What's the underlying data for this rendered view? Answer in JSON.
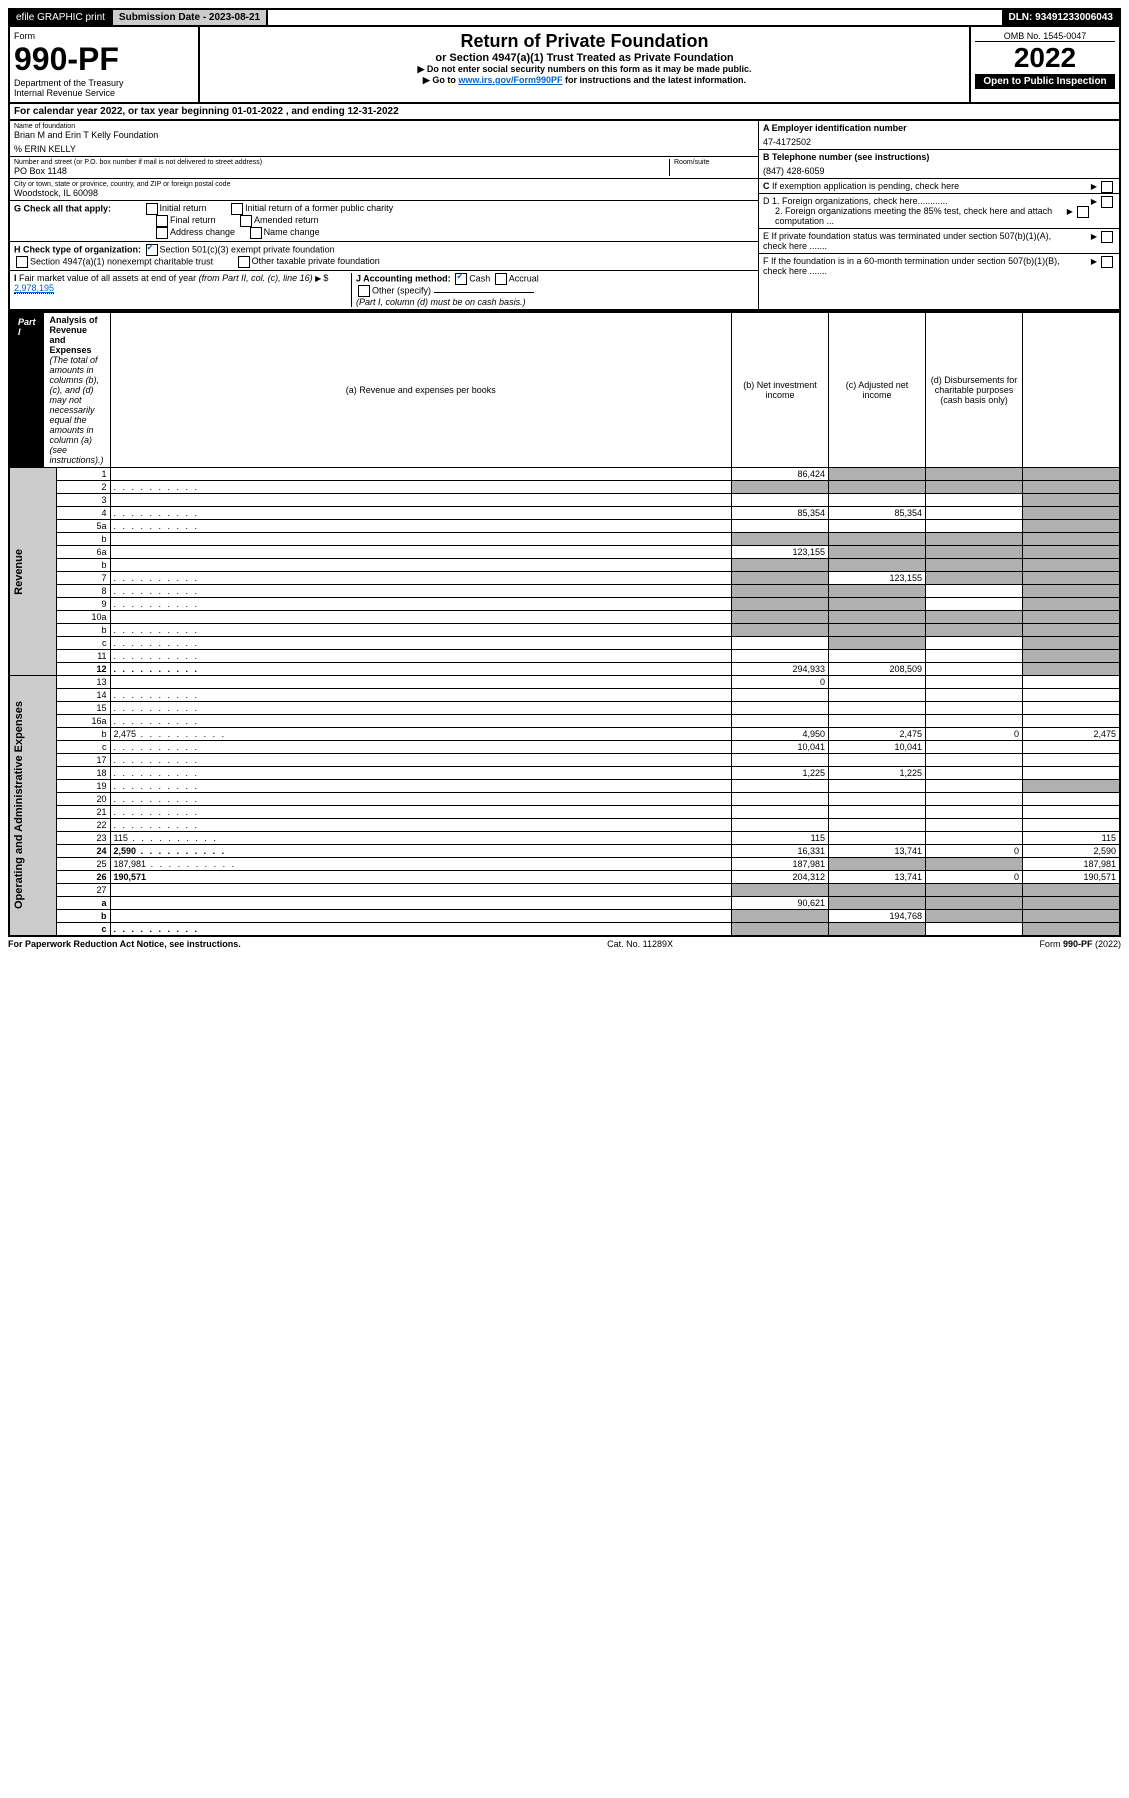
{
  "topbar": {
    "efile": "efile GRAPHIC print",
    "submission_label": "Submission Date - 2023-08-21",
    "dln": "DLN: 93491233006043"
  },
  "header": {
    "form_word": "Form",
    "form_number": "990-PF",
    "dept": "Department of the Treasury",
    "irs": "Internal Revenue Service",
    "title": "Return of Private Foundation",
    "subtitle": "or Section 4947(a)(1) Trust Treated as Private Foundation",
    "instr1": "▶ Do not enter social security numbers on this form as it may be made public.",
    "instr2_pre": "▶ Go to ",
    "instr2_link": "www.irs.gov/Form990PF",
    "instr2_post": " for instructions and the latest information.",
    "omb": "OMB No. 1545-0047",
    "year": "2022",
    "open_public": "Open to Public Inspection"
  },
  "calendar_line": {
    "prefix": "For calendar year 2022, or tax year beginning ",
    "begin": "01-01-2022",
    "mid": " , and ending ",
    "end": "12-31-2022"
  },
  "foundation": {
    "name_label": "Name of foundation",
    "name": "Brian M and Erin T Kelly Foundation",
    "care_of": "% ERIN KELLY",
    "addr_label": "Number and street (or P.O. box number if mail is not delivered to street address)",
    "addr": "PO Box 1148",
    "room_label": "Room/suite",
    "city_label": "City or town, state or province, country, and ZIP or foreign postal code",
    "city": "Woodstock, IL  60098"
  },
  "right_info": {
    "A_label": "A Employer identification number",
    "A_val": "47-4172502",
    "B_label": "B Telephone number (see instructions)",
    "B_val": "(847) 428-6059",
    "C_label": "C If exemption application is pending, check here",
    "D1": "D 1. Foreign organizations, check here............",
    "D2": "2. Foreign organizations meeting the 85% test, check here and attach computation ...",
    "E": "E  If private foundation status was terminated under section 507(b)(1)(A), check here .......",
    "F": "F  If the foundation is in a 60-month termination under section 507(b)(1)(B), check here ......."
  },
  "G": {
    "label": "G Check all that apply:",
    "opts": [
      "Initial return",
      "Initial return of a former public charity",
      "Final return",
      "Amended return",
      "Address change",
      "Name change"
    ]
  },
  "H": {
    "label": "H Check type of organization:",
    "opt1": "Section 501(c)(3) exempt private foundation",
    "opt2": "Section 4947(a)(1) nonexempt charitable trust",
    "opt3": "Other taxable private foundation"
  },
  "I": {
    "label": "I Fair market value of all assets at end of year (from Part II, col. (c), line 16) ▶$ ",
    "val": "2,978,195"
  },
  "J": {
    "label": "J Accounting method:",
    "cash": "Cash",
    "accrual": "Accrual",
    "other": "Other (specify)",
    "note": "(Part I, column (d) must be on cash basis.)"
  },
  "partI": {
    "label": "Part I",
    "title": "Analysis of Revenue and Expenses",
    "title_note": " (The total of amounts in columns (b), (c), and (d) may not necessarily equal the amounts in column (a) (see instructions).)",
    "col_a": "(a)  Revenue and expenses per books",
    "col_b": "(b)  Net investment income",
    "col_c": "(c)  Adjusted net income",
    "col_d": "(d)  Disbursements for charitable purposes (cash basis only)"
  },
  "side_labels": {
    "revenue": "Revenue",
    "opex": "Operating and Administrative Expenses"
  },
  "rows": [
    {
      "n": "1",
      "d": "",
      "a": "86,424",
      "b": "",
      "c": "",
      "shade": [
        "b",
        "c",
        "d"
      ]
    },
    {
      "n": "2",
      "d": "",
      "a": "",
      "b": "",
      "c": "",
      "shade": [
        "a",
        "b",
        "c",
        "d"
      ],
      "dots": true
    },
    {
      "n": "3",
      "d": "",
      "a": "",
      "b": "",
      "c": "",
      "shade": [
        "d"
      ]
    },
    {
      "n": "4",
      "d": "",
      "a": "85,354",
      "b": "85,354",
      "c": "",
      "shade": [
        "d"
      ],
      "dots": true
    },
    {
      "n": "5a",
      "d": "",
      "a": "",
      "b": "",
      "c": "",
      "shade": [
        "d"
      ],
      "dots": true
    },
    {
      "n": "b",
      "d": "",
      "a": "",
      "b": "",
      "c": "",
      "shade": [
        "a",
        "b",
        "c",
        "d"
      ]
    },
    {
      "n": "6a",
      "d": "",
      "a": "123,155",
      "b": "",
      "c": "",
      "shade": [
        "b",
        "c",
        "d"
      ]
    },
    {
      "n": "b",
      "d": "",
      "a": "",
      "b": "",
      "c": "",
      "shade": [
        "a",
        "b",
        "c",
        "d"
      ]
    },
    {
      "n": "7",
      "d": "",
      "a": "",
      "b": "123,155",
      "c": "",
      "shade": [
        "a",
        "c",
        "d"
      ],
      "dots": true
    },
    {
      "n": "8",
      "d": "",
      "a": "",
      "b": "",
      "c": "",
      "shade": [
        "a",
        "b",
        "d"
      ],
      "dots": true
    },
    {
      "n": "9",
      "d": "",
      "a": "",
      "b": "",
      "c": "",
      "shade": [
        "a",
        "b",
        "d"
      ],
      "dots": true
    },
    {
      "n": "10a",
      "d": "",
      "a": "",
      "b": "",
      "c": "",
      "shade": [
        "a",
        "b",
        "c",
        "d"
      ]
    },
    {
      "n": "b",
      "d": "",
      "a": "",
      "b": "",
      "c": "",
      "shade": [
        "a",
        "b",
        "c",
        "d"
      ],
      "dots": true
    },
    {
      "n": "c",
      "d": "",
      "a": "",
      "b": "",
      "c": "",
      "shade": [
        "b",
        "d"
      ],
      "dots": true
    },
    {
      "n": "11",
      "d": "",
      "a": "",
      "b": "",
      "c": "",
      "shade": [
        "d"
      ],
      "dots": true
    },
    {
      "n": "12",
      "d": "",
      "a": "294,933",
      "b": "208,509",
      "c": "",
      "shade": [
        "d"
      ],
      "bold": true,
      "dots": true
    },
    {
      "n": "13",
      "d": "",
      "a": "0",
      "b": "",
      "c": ""
    },
    {
      "n": "14",
      "d": "",
      "a": "",
      "b": "",
      "c": "",
      "dots": true
    },
    {
      "n": "15",
      "d": "",
      "a": "",
      "b": "",
      "c": "",
      "dots": true
    },
    {
      "n": "16a",
      "d": "",
      "a": "",
      "b": "",
      "c": "",
      "dots": true
    },
    {
      "n": "b",
      "d": "2,475",
      "a": "4,950",
      "b": "2,475",
      "c": "0",
      "dots": true
    },
    {
      "n": "c",
      "d": "",
      "a": "10,041",
      "b": "10,041",
      "c": "",
      "dots": true
    },
    {
      "n": "17",
      "d": "",
      "a": "",
      "b": "",
      "c": "",
      "dots": true
    },
    {
      "n": "18",
      "d": "",
      "a": "1,225",
      "b": "1,225",
      "c": "",
      "dots": true
    },
    {
      "n": "19",
      "d": "",
      "a": "",
      "b": "",
      "c": "",
      "shade": [
        "d"
      ],
      "dots": true
    },
    {
      "n": "20",
      "d": "",
      "a": "",
      "b": "",
      "c": "",
      "dots": true
    },
    {
      "n": "21",
      "d": "",
      "a": "",
      "b": "",
      "c": "",
      "dots": true
    },
    {
      "n": "22",
      "d": "",
      "a": "",
      "b": "",
      "c": "",
      "dots": true
    },
    {
      "n": "23",
      "d": "115",
      "a": "115",
      "b": "",
      "c": "",
      "dots": true
    },
    {
      "n": "24",
      "d": "2,590",
      "a": "16,331",
      "b": "13,741",
      "c": "0",
      "bold": true,
      "dots": true
    },
    {
      "n": "25",
      "d": "187,981",
      "a": "187,981",
      "b": "",
      "c": "",
      "shade": [
        "b",
        "c"
      ],
      "dots": true
    },
    {
      "n": "26",
      "d": "190,571",
      "a": "204,312",
      "b": "13,741",
      "c": "0",
      "bold": true
    },
    {
      "n": "27",
      "d": "",
      "a": "",
      "b": "",
      "c": "",
      "shade": [
        "a",
        "b",
        "c",
        "d"
      ]
    },
    {
      "n": "a",
      "d": "",
      "a": "90,621",
      "b": "",
      "c": "",
      "shade": [
        "b",
        "c",
        "d"
      ],
      "bold": true
    },
    {
      "n": "b",
      "d": "",
      "a": "",
      "b": "194,768",
      "c": "",
      "shade": [
        "a",
        "c",
        "d"
      ],
      "bold": true
    },
    {
      "n": "c",
      "d": "",
      "a": "",
      "b": "",
      "c": "",
      "shade": [
        "a",
        "b",
        "d"
      ],
      "bold": true,
      "dots": true
    }
  ],
  "footer": {
    "left": "For Paperwork Reduction Act Notice, see instructions.",
    "mid": "Cat. No. 11289X",
    "right": "Form 990-PF (2022)"
  }
}
